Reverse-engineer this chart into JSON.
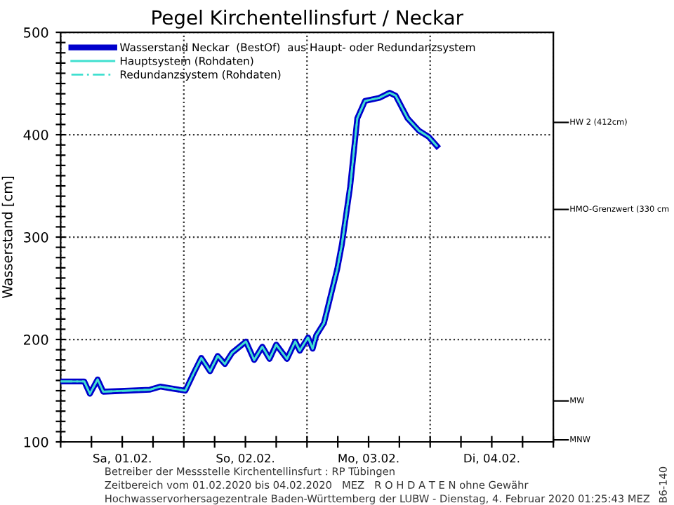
{
  "chart_data": {
    "type": "line",
    "title": "Pegel Kirchentellinsfurt / Neckar",
    "ylabel": "Wasserstand [cm]",
    "x": [
      "2020-02-01T00:00",
      "2020-02-01T04:36",
      "2020-02-01T05:42",
      "2020-02-01T07:12",
      "2020-02-01T08:18",
      "2020-02-01T17:24",
      "2020-02-01T19:24",
      "2020-02-02T00:18",
      "2020-02-02T02:06",
      "2020-02-02T03:24",
      "2020-02-02T05:06",
      "2020-02-02T06:36",
      "2020-02-02T08:00",
      "2020-02-02T09:24",
      "2020-02-02T12:06",
      "2020-02-02T13:42",
      "2020-02-02T15:18",
      "2020-02-02T16:42",
      "2020-02-02T18:00",
      "2020-02-02T20:06",
      "2020-02-02T21:42",
      "2020-02-02T22:36",
      "2020-02-03T00:12",
      "2020-02-03T01:06",
      "2020-02-03T01:48",
      "2020-02-03T03:18",
      "2020-02-03T05:54",
      "2020-02-03T06:48",
      "2020-02-03T08:24",
      "2020-02-03T09:48",
      "2020-02-03T11:18",
      "2020-02-03T14:06",
      "2020-02-03T16:06",
      "2020-02-03T17:18",
      "2020-02-03T19:36",
      "2020-02-03T21:48",
      "2020-02-03T23:42",
      "2020-02-04T01:18"
    ],
    "series": [
      {
        "name": "Wasserstand Neckar  (BestOf)  aus Haupt- oder Redundanzsystem",
        "color": "#0000cc",
        "line_style": "solid",
        "values": [
          159,
          159,
          147,
          161,
          149,
          151,
          154,
          150,
          169,
          182,
          169,
          184,
          176,
          187,
          198,
          180,
          193,
          181,
          195,
          181,
          198,
          189,
          202,
          191,
          204,
          216,
          269,
          293,
          349,
          416,
          433,
          436,
          441,
          438,
          416,
          404,
          398,
          389
        ]
      },
      {
        "name": "Hauptsystem (Rohdaten)",
        "color": "#40e0d0",
        "line_style": "solid",
        "values": [
          159,
          159,
          147,
          161,
          149,
          151,
          154,
          150,
          169,
          182,
          169,
          184,
          176,
          187,
          198,
          180,
          193,
          181,
          195,
          181,
          198,
          189,
          202,
          191,
          204,
          216,
          269,
          293,
          349,
          416,
          433,
          436,
          441,
          438,
          416,
          404,
          398,
          389
        ]
      },
      {
        "name": "Redundanzsystem (Rohdaten)",
        "color": "#40e0d0",
        "line_style": "dashed",
        "values": [
          159,
          159,
          147,
          161,
          149,
          151,
          154,
          150,
          169,
          182,
          169,
          184,
          176,
          187,
          198,
          180,
          193,
          181,
          195,
          181,
          198,
          189,
          202,
          191,
          204,
          216,
          269,
          293,
          349,
          416,
          433,
          436,
          441,
          438,
          416,
          404,
          398,
          389
        ]
      }
    ],
    "xlim": [
      "2020-02-01T00:00",
      "2020-02-05T00:00"
    ],
    "xticks": [
      {
        "value": "2020-02-01T00:00",
        "label": null
      },
      {
        "value": "2020-02-01T06:00",
        "label": null
      },
      {
        "value": "2020-02-01T12:00",
        "label": "Sa, 01.02."
      },
      {
        "value": "2020-02-01T18:00",
        "label": null
      },
      {
        "value": "2020-02-02T00:00",
        "label": null
      },
      {
        "value": "2020-02-02T06:00",
        "label": null
      },
      {
        "value": "2020-02-02T12:00",
        "label": "So, 02.02."
      },
      {
        "value": "2020-02-02T18:00",
        "label": null
      },
      {
        "value": "2020-02-03T00:00",
        "label": null
      },
      {
        "value": "2020-02-03T06:00",
        "label": null
      },
      {
        "value": "2020-02-03T12:00",
        "label": "Mo, 03.02."
      },
      {
        "value": "2020-02-03T18:00",
        "label": null
      },
      {
        "value": "2020-02-04T00:00",
        "label": null
      },
      {
        "value": "2020-02-04T06:00",
        "label": null
      },
      {
        "value": "2020-02-04T12:00",
        "label": "Di, 04.02."
      },
      {
        "value": "2020-02-04T18:00",
        "label": null
      },
      {
        "value": "2020-02-05T00:00",
        "label": null
      }
    ],
    "ylim": [
      100,
      500
    ],
    "yticks": [
      100,
      {
        "value": 110,
        "label": null
      },
      {
        "value": 120,
        "label": null
      },
      {
        "value": 130,
        "label": null
      },
      {
        "value": 140,
        "label": null
      },
      {
        "value": 150,
        "label": null
      },
      {
        "value": 160,
        "label": null
      },
      {
        "value": 170,
        "label": null
      },
      {
        "value": 180,
        "label": null
      },
      {
        "value": 190,
        "label": null
      },
      200,
      {
        "value": 210,
        "label": null
      },
      {
        "value": 220,
        "label": null
      },
      {
        "value": 230,
        "label": null
      },
      {
        "value": 240,
        "label": null
      },
      {
        "value": 250,
        "label": null
      },
      {
        "value": 260,
        "label": null
      },
      {
        "value": 270,
        "label": null
      },
      {
        "value": 280,
        "label": null
      },
      {
        "value": 290,
        "label": null
      },
      300,
      {
        "value": 310,
        "label": null
      },
      {
        "value": 320,
        "label": null
      },
      {
        "value": 330,
        "label": null
      },
      {
        "value": 340,
        "label": null
      },
      {
        "value": 350,
        "label": null
      },
      {
        "value": 360,
        "label": null
      },
      {
        "value": 370,
        "label": null
      },
      {
        "value": 380,
        "label": null
      },
      {
        "value": 390,
        "label": null
      },
      400,
      {
        "value": 410,
        "label": null
      },
      {
        "value": 420,
        "label": null
      },
      {
        "value": 430,
        "label": null
      },
      {
        "value": 440,
        "label": null
      },
      {
        "value": 450,
        "label": null
      },
      {
        "value": 460,
        "label": null
      },
      {
        "value": 470,
        "label": null
      },
      {
        "value": 480,
        "label": null
      },
      {
        "value": 490,
        "label": null
      },
      500
    ],
    "grid": true,
    "legend": "top left",
    "ref_lines": [
      {
        "axis": "y",
        "value": 412,
        "label": "HW 2 (412cm)"
      },
      {
        "axis": "y",
        "value": 327,
        "label": "HMO-Grenzwert (330 cm"
      },
      {
        "axis": "y",
        "value": 140,
        "label": "MW"
      },
      {
        "axis": "y",
        "value": 102,
        "label": "MNW"
      }
    ],
    "annotations": [
      "Betreiber der Messstelle Kirchentellinsfurt : RP Tübingen",
      "Zeitbereich vom 01.02.2020 bis 04.02.2020   MEZ   R O H D A T E N ohne Gewähr",
      "Hochwasservorhersagezentrale Baden-Württemberg der LUBW - Dienstag, 4. Februar 2020 01:25:43 MEZ",
      "B6-140"
    ]
  }
}
